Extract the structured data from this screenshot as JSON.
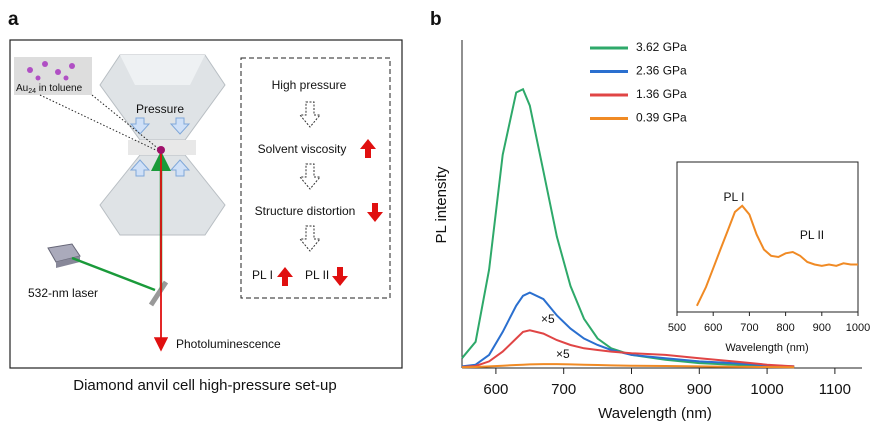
{
  "panel_a": {
    "label": "a",
    "caption": "Diamond anvil cell high-pressure set-up",
    "pressure": "Pressure",
    "sample": {
      "text": "Au",
      "subscript": "24",
      "rest": " in toluene"
    },
    "laser": "532-nm laser",
    "output": "Photoluminescence",
    "steps": [
      "High pressure",
      "Solvent viscosity",
      "Structure distortion"
    ],
    "pl1": "PL I",
    "pl2": "PL II"
  },
  "chart_data": {
    "type": "line",
    "panel_label": "b",
    "xlabel": "Wavelength (nm)",
    "ylabel": "PL intensity",
    "xlim": [
      550,
      1140
    ],
    "ylim": [
      0,
      1
    ],
    "xticks": [
      600,
      700,
      800,
      900,
      1000,
      1100
    ],
    "x": [
      550,
      570,
      590,
      610,
      630,
      640,
      650,
      670,
      690,
      710,
      730,
      750,
      770,
      800,
      850,
      900,
      950,
      1000,
      1040
    ],
    "series": [
      {
        "name": "3.62 GPa",
        "color": "#2ea96a",
        "values": [
          0.03,
          0.08,
          0.3,
          0.65,
          0.84,
          0.85,
          0.8,
          0.6,
          0.4,
          0.25,
          0.15,
          0.09,
          0.06,
          0.04,
          0.025,
          0.015,
          0.01,
          0.005,
          0.003
        ]
      },
      {
        "name": "2.36 GPa",
        "color": "#2a6fcf",
        "values": [
          0.005,
          0.01,
          0.04,
          0.11,
          0.19,
          0.22,
          0.23,
          0.21,
          0.16,
          0.12,
          0.09,
          0.07,
          0.055,
          0.04,
          0.03,
          0.02,
          0.015,
          0.008,
          0.005
        ]
      },
      {
        "name": "1.36 GPa",
        "color": "#e04545",
        "values": [
          0.003,
          0.006,
          0.02,
          0.05,
          0.09,
          0.11,
          0.115,
          0.105,
          0.085,
          0.07,
          0.06,
          0.055,
          0.05,
          0.045,
          0.04,
          0.03,
          0.02,
          0.01,
          0.005
        ]
      },
      {
        "name": "0.39 GPa",
        "color": "#f08a24",
        "values": [
          0.002,
          0.003,
          0.005,
          0.007,
          0.009,
          0.01,
          0.011,
          0.012,
          0.012,
          0.011,
          0.01,
          0.009,
          0.008,
          0.007,
          0.006,
          0.005,
          0.004,
          0.003,
          0.002
        ]
      }
    ],
    "annotations": [
      "×5",
      "×5"
    ],
    "inset": {
      "xlabel": "Wavelength (nm)",
      "xlim": [
        500,
        1000
      ],
      "ylim": [
        0,
        1.2
      ],
      "xticks": [
        500,
        600,
        700,
        800,
        900,
        1000
      ],
      "color": "#f08a24",
      "x": [
        555,
        580,
        600,
        620,
        640,
        660,
        680,
        700,
        720,
        740,
        760,
        780,
        800,
        820,
        840,
        860,
        880,
        900,
        920,
        940,
        960,
        980,
        1000
      ],
      "values": [
        0.05,
        0.2,
        0.35,
        0.5,
        0.65,
        0.8,
        0.85,
        0.78,
        0.62,
        0.5,
        0.45,
        0.44,
        0.47,
        0.48,
        0.45,
        0.4,
        0.38,
        0.37,
        0.38,
        0.37,
        0.39,
        0.38,
        0.38
      ],
      "annotations": [
        "PL I",
        "PL II"
      ]
    }
  }
}
